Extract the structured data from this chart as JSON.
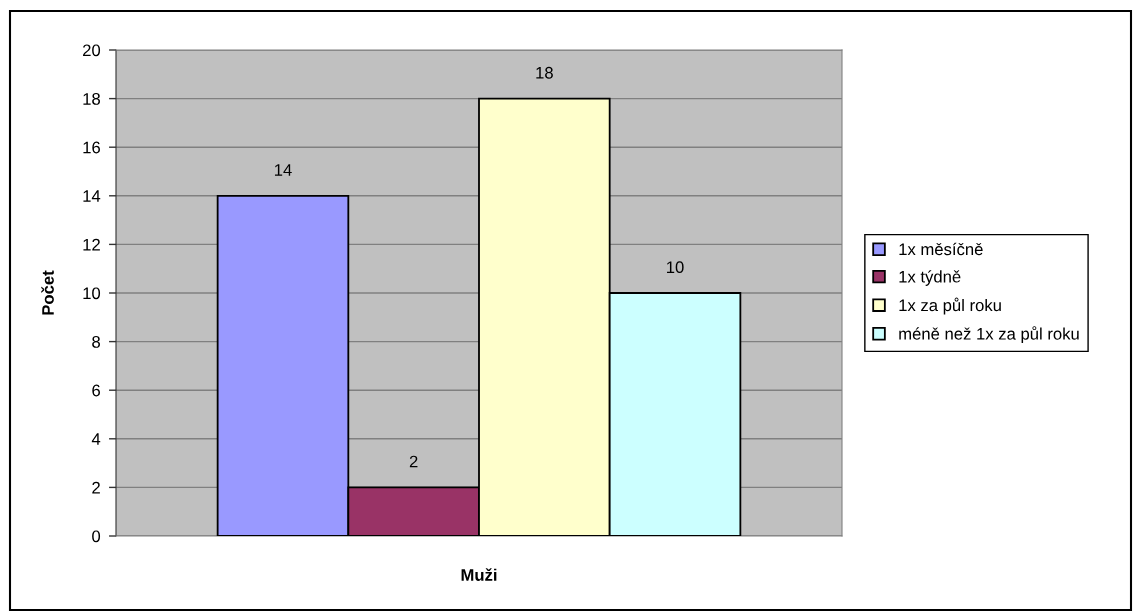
{
  "chart_data": {
    "type": "bar",
    "categories": [
      null
    ],
    "xlabel": "Muži",
    "ylabel": "Počet",
    "series": [
      {
        "name": "1x měsíčně",
        "color": "#9999ff",
        "values": [
          14
        ]
      },
      {
        "name": "1x týdně",
        "color": "#993366",
        "values": [
          2
        ]
      },
      {
        "name": "1x za půl roku",
        "color": "#ffffcc",
        "values": [
          18
        ]
      },
      {
        "name": "méně než 1x za půl roku",
        "color": "#ccffff",
        "values": [
          10
        ]
      }
    ],
    "ylim": [
      0,
      20
    ],
    "yticks": [
      0,
      2,
      4,
      6,
      8,
      10,
      12,
      14,
      16,
      18,
      20
    ],
    "grid": "y",
    "legend": "right",
    "data_labels": true
  }
}
